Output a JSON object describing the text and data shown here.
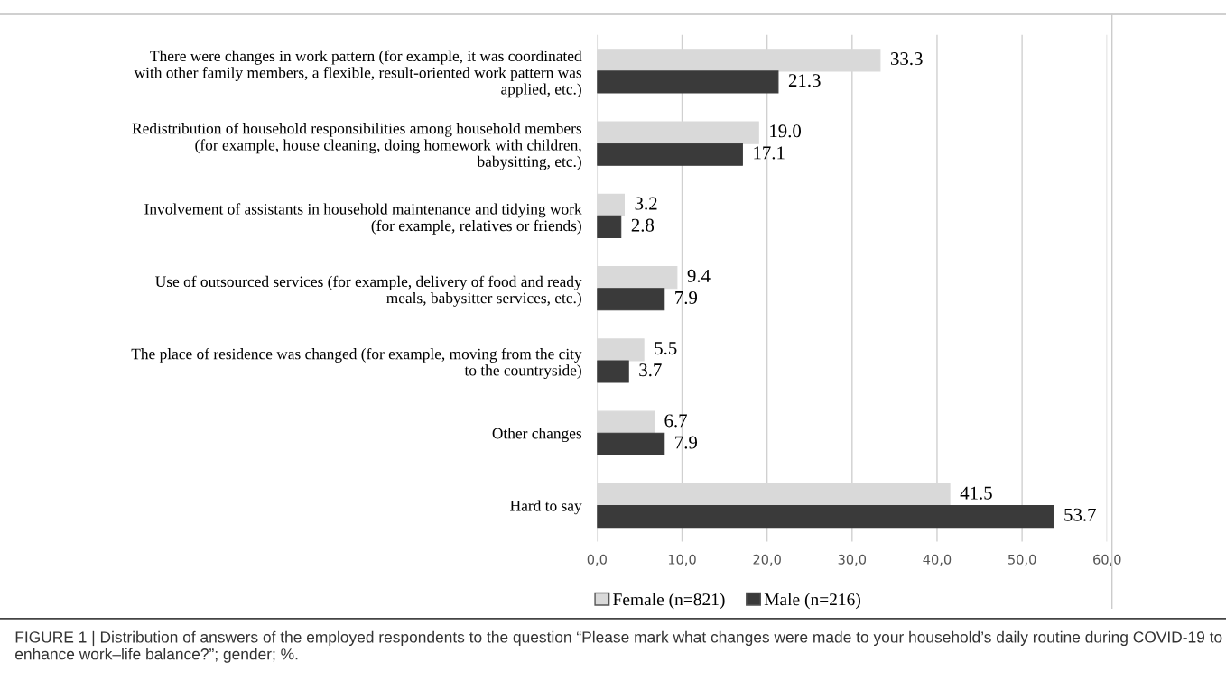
{
  "chart_data": {
    "type": "bar",
    "orientation": "horizontal",
    "categories": [
      "There were changes in work pattern (for example, it was coordinated\nwith other family members, a flexible, result-oriented work pattern was\napplied, etc.)",
      "Redistribution of household responsibilities among household members\n(for example, house cleaning, doing homework with children,\nbabysitting, etc.)",
      "Involvement of assistants in household maintenance and tidying work\n(for example, relatives or friends)",
      "Use of outsourced services (for example, delivery of food and ready\nmeals, babysitter services, etc.)",
      "The place of residence was changed (for example, moving from the city\nto the countryside)",
      "Other changes",
      "Hard to say"
    ],
    "series": [
      {
        "name": "Female (n=821)",
        "color": "#d9d9d9",
        "values": [
          33.3,
          19.0,
          3.2,
          9.4,
          5.5,
          6.7,
          41.5
        ],
        "value_labels": [
          "33.3",
          "19.0",
          "3.2",
          "9.4",
          "5.5",
          "6.7",
          "41.5"
        ]
      },
      {
        "name": "Male (n=216)",
        "color": "#3a3a3a",
        "values": [
          21.3,
          17.1,
          2.8,
          7.9,
          3.7,
          7.9,
          53.7
        ],
        "value_labels": [
          "21.3",
          "17.1",
          "2.8",
          "7.9",
          "3.7",
          "7.9",
          "53.7"
        ]
      }
    ],
    "xlim": [
      0,
      60
    ],
    "xticks": [
      {
        "value": 0,
        "label": "0,0"
      },
      {
        "value": 10,
        "label": "10,0"
      },
      {
        "value": 20,
        "label": "20,0"
      },
      {
        "value": 30,
        "label": "30,0"
      },
      {
        "value": 40,
        "label": "40,0"
      },
      {
        "value": 50,
        "label": "50,0"
      },
      {
        "value": 60,
        "label": "60,0"
      }
    ],
    "grid": "x",
    "legend": "bottom",
    "annotations": [
      "FIGURE 1 | Distribution of answers of the employed respondents to the question “Please mark what changes were made to your household’s daily routine during COVID-19 to enhance work–life balance?”; gender; %."
    ]
  }
}
